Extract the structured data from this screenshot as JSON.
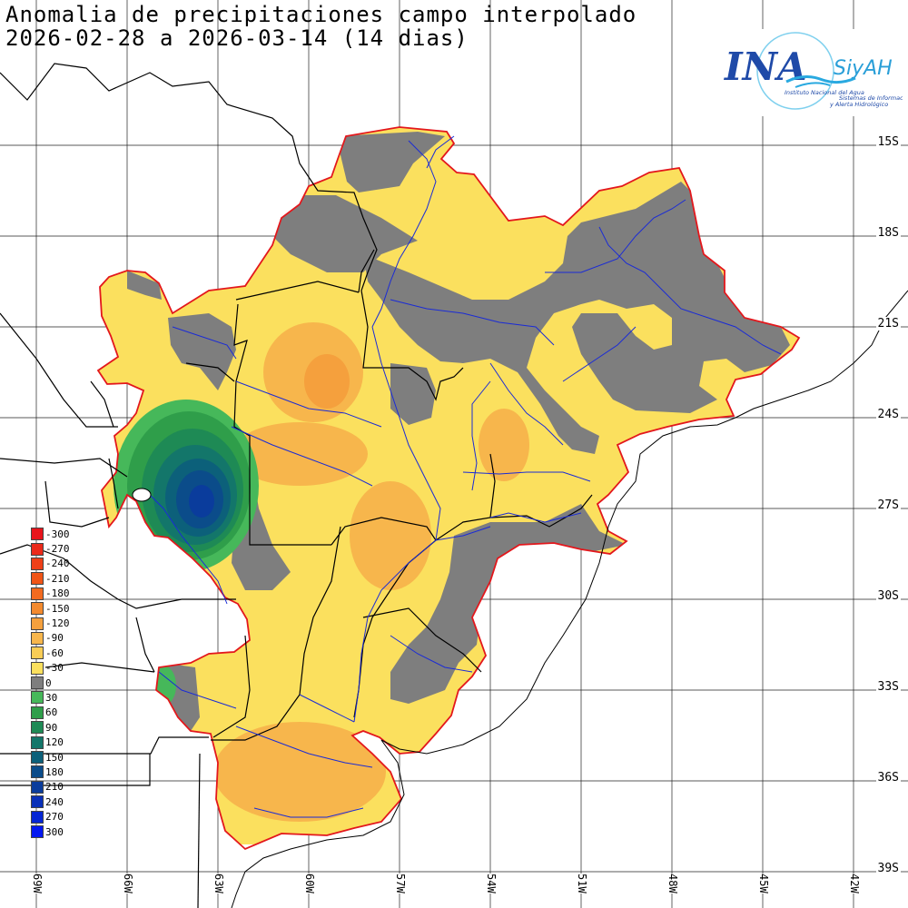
{
  "title": {
    "line1": "Anomalia de precipitaciones campo interpolado",
    "line2": "2026-02-28 a 2026-03-14 (14 dias)"
  },
  "logo": {
    "mark": "INA",
    "brand": "SiyAH",
    "org": "Instituto Nacional del Agua",
    "tagline1": "Sistemas de Información",
    "tagline2": "y Alerta Hidrológico"
  },
  "legend": [
    {
      "label": "-300",
      "color": "#e8141b"
    },
    {
      "label": "-270",
      "color": "#eb2a1a"
    },
    {
      "label": "-240",
      "color": "#ee3f18"
    },
    {
      "label": "-210",
      "color": "#f05517"
    },
    {
      "label": "-180",
      "color": "#f26a1f"
    },
    {
      "label": "-150",
      "color": "#f38a2e"
    },
    {
      "label": "-120",
      "color": "#f5a03d"
    },
    {
      "label": "-90",
      "color": "#f7b64c"
    },
    {
      "label": "-60",
      "color": "#f9cd56"
    },
    {
      "label": "-30",
      "color": "#fbe05e"
    },
    {
      "label": "0",
      "color": "#7e7e7e"
    },
    {
      "label": "30",
      "color": "#46b85a"
    },
    {
      "label": "60",
      "color": "#2f9e4a"
    },
    {
      "label": "90",
      "color": "#1e8a55"
    },
    {
      "label": "120",
      "color": "#13766a"
    },
    {
      "label": "150",
      "color": "#0c607a"
    },
    {
      "label": "180",
      "color": "#0b4c8a"
    },
    {
      "label": "210",
      "color": "#0a3c9c"
    },
    {
      "label": "240",
      "color": "#0930b8"
    },
    {
      "label": "270",
      "color": "#0626d4"
    },
    {
      "label": "300",
      "color": "#0418f0"
    }
  ],
  "lat_labels": [
    "15S",
    "18S",
    "21S",
    "24S",
    "27S",
    "30S",
    "33S",
    "36S",
    "39S"
  ],
  "lon_labels": [
    "69W",
    "66W",
    "63W",
    "60W",
    "57W",
    "54W",
    "51W",
    "48W",
    "45W",
    "42W"
  ],
  "colors": {
    "basin_border": "#e3171c",
    "rivers": "#1a2bd6",
    "borders": "#000000",
    "grid": "#000000"
  }
}
